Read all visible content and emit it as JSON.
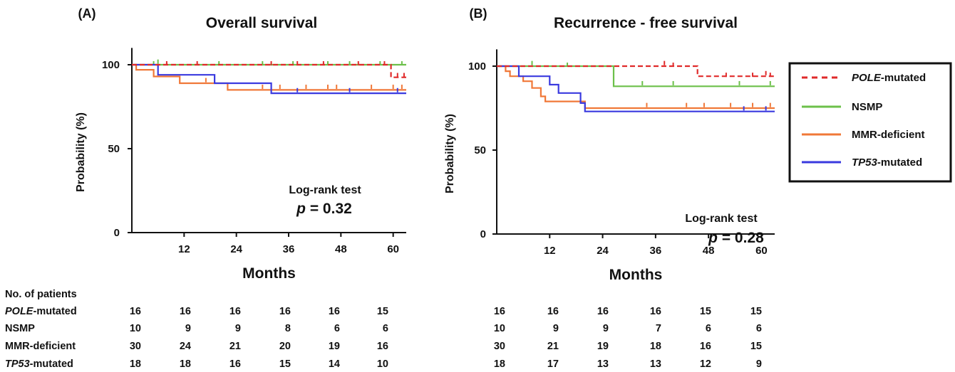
{
  "chart_data": [
    {
      "panel": "(A)",
      "type": "line",
      "title": "Overall survival",
      "xlabel": "Months",
      "ylabel": "Probability (%)",
      "xticks": [
        12,
        24,
        36,
        48,
        60
      ],
      "yticks": [
        0,
        50,
        100
      ],
      "xlim": [
        0,
        63
      ],
      "ylim": [
        0,
        110
      ],
      "annotation": "Log-rank test",
      "p_label": "p",
      "p_value": "= 0.32",
      "series": [
        {
          "name": "POLE-mutated",
          "color": "#e02a2a",
          "dash": true,
          "steps": [
            [
              0,
              100
            ],
            [
              59.5,
              100
            ],
            [
              59.5,
              92.5
            ],
            [
              63,
              92.5
            ]
          ],
          "censor": [
            [
              8,
              100
            ],
            [
              15,
              100
            ],
            [
              32,
              100
            ],
            [
              38,
              100
            ],
            [
              44,
              100
            ],
            [
              52,
              100
            ],
            [
              58,
              100
            ],
            [
              61,
              93
            ],
            [
              62.5,
              93
            ]
          ]
        },
        {
          "name": "NSMP",
          "color": "#6cc04a",
          "dash": false,
          "steps": [
            [
              0,
              100
            ],
            [
              63,
              100
            ]
          ],
          "censor": [
            [
              5,
              100
            ],
            [
              6,
              101
            ],
            [
              20,
              100
            ],
            [
              30,
              100
            ],
            [
              37,
              100
            ],
            [
              45,
              100
            ],
            [
              50,
              100
            ],
            [
              57,
              100
            ],
            [
              62,
              100
            ]
          ]
        },
        {
          "name": "MMR-deficient",
          "color": "#f07838",
          "dash": false,
          "steps": [
            [
              0,
              100
            ],
            [
              1,
              100
            ],
            [
              1,
              97
            ],
            [
              5,
              97
            ],
            [
              5,
              93
            ],
            [
              11,
              93
            ],
            [
              11,
              89
            ],
            [
              22,
              89
            ],
            [
              22,
              85
            ],
            [
              63,
              85
            ]
          ],
          "censor": [
            [
              17,
              90
            ],
            [
              30,
              86
            ],
            [
              34,
              86
            ],
            [
              40,
              86
            ],
            [
              45,
              86
            ],
            [
              47,
              86
            ],
            [
              55,
              86
            ],
            [
              60,
              86
            ],
            [
              62,
              86
            ]
          ]
        },
        {
          "name": "TP53-mutated",
          "color": "#3a3adf",
          "dash": false,
          "steps": [
            [
              0,
              100
            ],
            [
              6,
              100
            ],
            [
              6,
              94
            ],
            [
              19,
              94
            ],
            [
              19,
              89
            ],
            [
              32,
              89
            ],
            [
              32,
              83
            ],
            [
              63,
              83
            ]
          ],
          "censor": [
            [
              38,
              84
            ],
            [
              50,
              84
            ],
            [
              61,
              84
            ]
          ]
        }
      ],
      "risk": {
        "POLE-mutated": [
          16,
          16,
          16,
          16,
          16,
          15
        ],
        "NSMP": [
          10,
          9,
          9,
          8,
          6,
          6
        ],
        "MMR-deficient": [
          30,
          24,
          21,
          20,
          19,
          16
        ],
        "TP53-mutated": [
          18,
          18,
          16,
          15,
          14,
          10
        ]
      }
    },
    {
      "panel": "(B)",
      "type": "line",
      "title": "Recurrence - free survival",
      "xlabel": "Months",
      "ylabel": "Probability (%)",
      "xticks": [
        12,
        24,
        36,
        48,
        60
      ],
      "yticks": [
        0,
        50,
        100
      ],
      "xlim": [
        0,
        63
      ],
      "ylim": [
        0,
        110
      ],
      "annotation": "Log-rank test",
      "p_label": "p",
      "p_value": "= 0.28",
      "series": [
        {
          "name": "POLE-mutated",
          "color": "#e02a2a",
          "dash": true,
          "steps": [
            [
              0,
              100
            ],
            [
              45.5,
              100
            ],
            [
              45.5,
              94
            ],
            [
              63,
              94
            ]
          ],
          "censor": [
            [
              38,
              101
            ],
            [
              40,
              100
            ],
            [
              52,
              94
            ],
            [
              58,
              94
            ],
            [
              61,
              95
            ],
            [
              62,
              94
            ]
          ]
        },
        {
          "name": "NSMP",
          "color": "#6cc04a",
          "dash": false,
          "steps": [
            [
              0,
              100
            ],
            [
              26.5,
              100
            ],
            [
              26.5,
              88
            ],
            [
              63,
              88
            ]
          ],
          "censor": [
            [
              8,
              101
            ],
            [
              16,
              100
            ],
            [
              33,
              89
            ],
            [
              40,
              89
            ],
            [
              55,
              89
            ],
            [
              62,
              89
            ]
          ]
        },
        {
          "name": "MMR-deficient",
          "color": "#f07838",
          "dash": false,
          "steps": [
            [
              0,
              100
            ],
            [
              2,
              100
            ],
            [
              2,
              97
            ],
            [
              3,
              97
            ],
            [
              3,
              94
            ],
            [
              6,
              94
            ],
            [
              6,
              91
            ],
            [
              8,
              91
            ],
            [
              8,
              87
            ],
            [
              10,
              87
            ],
            [
              10,
              82
            ],
            [
              11,
              82
            ],
            [
              11,
              79
            ],
            [
              20,
              79
            ],
            [
              20,
              75
            ],
            [
              63,
              75
            ]
          ],
          "censor": [
            [
              34,
              76
            ],
            [
              43,
              76
            ],
            [
              47,
              76
            ],
            [
              53,
              76
            ],
            [
              58,
              76
            ],
            [
              62,
              76
            ]
          ]
        },
        {
          "name": "TP53-mutated",
          "color": "#3a3adf",
          "dash": false,
          "steps": [
            [
              0,
              100
            ],
            [
              5,
              100
            ],
            [
              5,
              94
            ],
            [
              12,
              94
            ],
            [
              12,
              89
            ],
            [
              14,
              89
            ],
            [
              14,
              84
            ],
            [
              19,
              84
            ],
            [
              19,
              78
            ],
            [
              20,
              78
            ],
            [
              20,
              73
            ],
            [
              63,
              73
            ]
          ],
          "censor": [
            [
              56,
              74
            ],
            [
              61,
              74
            ]
          ]
        }
      ],
      "risk": {
        "POLE-mutated": [
          16,
          16,
          16,
          16,
          15,
          15
        ],
        "NSMP": [
          10,
          9,
          9,
          7,
          6,
          6
        ],
        "MMR-deficient": [
          30,
          21,
          19,
          18,
          16,
          15
        ],
        "TP53-mutated": [
          18,
          17,
          13,
          13,
          12,
          9
        ]
      }
    }
  ],
  "risk_table": {
    "title": "No. of patients",
    "rows": [
      {
        "key": "POLE-mutated",
        "italic": "POLE",
        "suffix": "-mutated"
      },
      {
        "key": "NSMP",
        "italic": "",
        "suffix": "NSMP"
      },
      {
        "key": "MMR-deficient",
        "italic": "",
        "suffix": "MMR-deficient"
      },
      {
        "key": "TP53-mutated",
        "italic": "TP53",
        "suffix": "-mutated"
      }
    ]
  },
  "legend": [
    {
      "italic": "POLE",
      "suffix": "-mutated",
      "color": "#e02a2a",
      "dash": true
    },
    {
      "italic": "",
      "suffix": "NSMP",
      "color": "#6cc04a",
      "dash": false
    },
    {
      "italic": "",
      "suffix": "MMR-deficient",
      "color": "#f07838",
      "dash": false
    },
    {
      "italic": "TP53",
      "suffix": "-mutated",
      "color": "#3a3adf",
      "dash": false
    }
  ]
}
